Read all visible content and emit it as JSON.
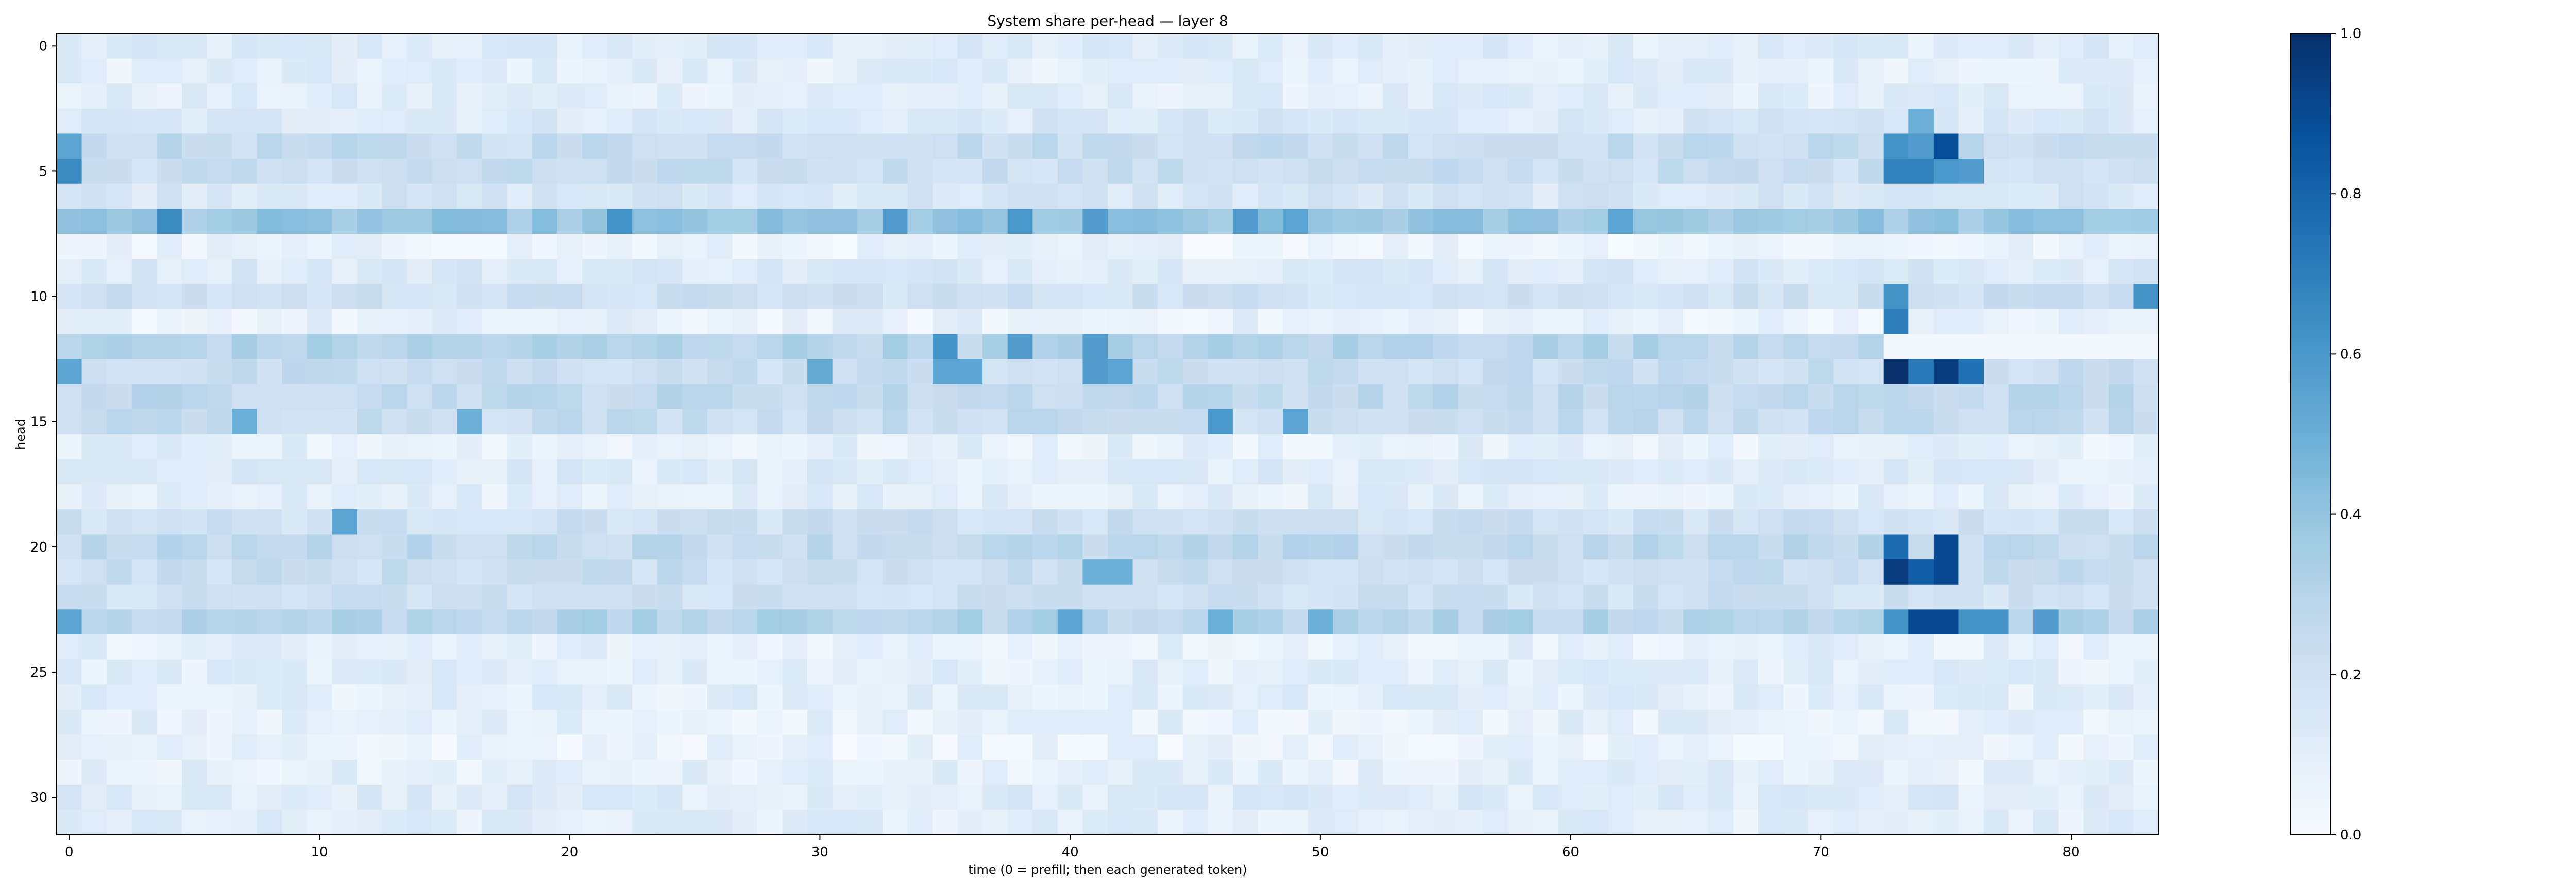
{
  "chart_data": {
    "type": "heatmap",
    "title": "System share per-head — layer 8",
    "xlabel": "time (0 = prefill; then each generated token)",
    "ylabel": "head",
    "x_ticks": [
      0,
      10,
      20,
      30,
      40,
      50,
      60,
      70,
      80
    ],
    "y_ticks": [
      0,
      5,
      10,
      15,
      20,
      25,
      30
    ],
    "n_cols": 84,
    "n_rows": 32,
    "x_range": [
      -0.5,
      83.5
    ],
    "y_range": [
      -0.5,
      31.5
    ],
    "colormap": "Blues",
    "colormap_stops": [
      "#f7fbff",
      "#deebf7",
      "#c6dbef",
      "#9ecae1",
      "#6baed6",
      "#4292c6",
      "#2171b5",
      "#08519c",
      "#08306b"
    ],
    "colorbar": {
      "range": [
        0.0,
        1.0
      ],
      "ticks": [
        "0.0",
        "0.2",
        "0.4",
        "0.6",
        "0.8",
        "1.0"
      ]
    },
    "row_base_values": [
      0.12,
      0.1,
      0.1,
      0.14,
      0.24,
      0.22,
      0.16,
      0.38,
      0.06,
      0.14,
      0.2,
      0.07,
      0.3,
      0.22,
      0.26,
      0.24,
      0.08,
      0.12,
      0.1,
      0.2,
      0.26,
      0.22,
      0.2,
      0.3,
      0.08,
      0.1,
      0.1,
      0.08,
      0.06,
      0.08,
      0.12,
      0.1
    ],
    "highlight_cells": [
      {
        "x": 73,
        "y": 4,
        "v": 0.62
      },
      {
        "x": 74,
        "y": 4,
        "v": 0.58
      },
      {
        "x": 75,
        "y": 4,
        "v": 0.88
      },
      {
        "x": 73,
        "y": 5,
        "v": 0.68
      },
      {
        "x": 74,
        "y": 5,
        "v": 0.68
      },
      {
        "x": 75,
        "y": 5,
        "v": 0.6
      },
      {
        "x": 76,
        "y": 5,
        "v": 0.58
      },
      {
        "x": 74,
        "y": 3,
        "v": 0.5
      },
      {
        "x": 73,
        "y": 10,
        "v": 0.62
      },
      {
        "x": 83,
        "y": 10,
        "v": 0.62
      },
      {
        "x": 73,
        "y": 11,
        "v": 0.7
      },
      {
        "x": 73,
        "y": 13,
        "v": 1.0
      },
      {
        "x": 74,
        "y": 13,
        "v": 0.72
      },
      {
        "x": 75,
        "y": 13,
        "v": 0.95
      },
      {
        "x": 76,
        "y": 13,
        "v": 0.75
      },
      {
        "x": 73,
        "y": 20,
        "v": 0.78
      },
      {
        "x": 75,
        "y": 20,
        "v": 0.9
      },
      {
        "x": 73,
        "y": 21,
        "v": 0.95
      },
      {
        "x": 74,
        "y": 21,
        "v": 0.82
      },
      {
        "x": 75,
        "y": 21,
        "v": 0.9
      },
      {
        "x": 73,
        "y": 23,
        "v": 0.62
      },
      {
        "x": 74,
        "y": 23,
        "v": 0.9
      },
      {
        "x": 75,
        "y": 23,
        "v": 0.9
      },
      {
        "x": 76,
        "y": 23,
        "v": 0.62
      },
      {
        "x": 77,
        "y": 23,
        "v": 0.62
      },
      {
        "x": 79,
        "y": 23,
        "v": 0.58
      },
      {
        "x": 4,
        "y": 7,
        "v": 0.65
      },
      {
        "x": 22,
        "y": 7,
        "v": 0.62
      },
      {
        "x": 33,
        "y": 7,
        "v": 0.58
      },
      {
        "x": 38,
        "y": 7,
        "v": 0.6
      },
      {
        "x": 41,
        "y": 7,
        "v": 0.58
      },
      {
        "x": 47,
        "y": 7,
        "v": 0.58
      },
      {
        "x": 49,
        "y": 7,
        "v": 0.55
      },
      {
        "x": 62,
        "y": 7,
        "v": 0.55
      },
      {
        "x": 35,
        "y": 12,
        "v": 0.62
      },
      {
        "x": 38,
        "y": 12,
        "v": 0.58
      },
      {
        "x": 41,
        "y": 12,
        "v": 0.58
      },
      {
        "x": 35,
        "y": 13,
        "v": 0.55
      },
      {
        "x": 36,
        "y": 13,
        "v": 0.55
      },
      {
        "x": 30,
        "y": 13,
        "v": 0.52
      },
      {
        "x": 41,
        "y": 13,
        "v": 0.58
      },
      {
        "x": 42,
        "y": 13,
        "v": 0.55
      },
      {
        "x": 46,
        "y": 15,
        "v": 0.6
      },
      {
        "x": 49,
        "y": 15,
        "v": 0.55
      },
      {
        "x": 7,
        "y": 15,
        "v": 0.5
      },
      {
        "x": 16,
        "y": 15,
        "v": 0.5
      },
      {
        "x": 11,
        "y": 19,
        "v": 0.55
      },
      {
        "x": 0,
        "y": 4,
        "v": 0.55
      },
      {
        "x": 0,
        "y": 5,
        "v": 0.65
      },
      {
        "x": 0,
        "y": 13,
        "v": 0.55
      },
      {
        "x": 0,
        "y": 23,
        "v": 0.55
      },
      {
        "x": 41,
        "y": 21,
        "v": 0.5
      },
      {
        "x": 42,
        "y": 21,
        "v": 0.5
      },
      {
        "x": 40,
        "y": 23,
        "v": 0.55
      },
      {
        "x": 46,
        "y": 23,
        "v": 0.5
      },
      {
        "x": 50,
        "y": 23,
        "v": 0.5
      }
    ]
  }
}
